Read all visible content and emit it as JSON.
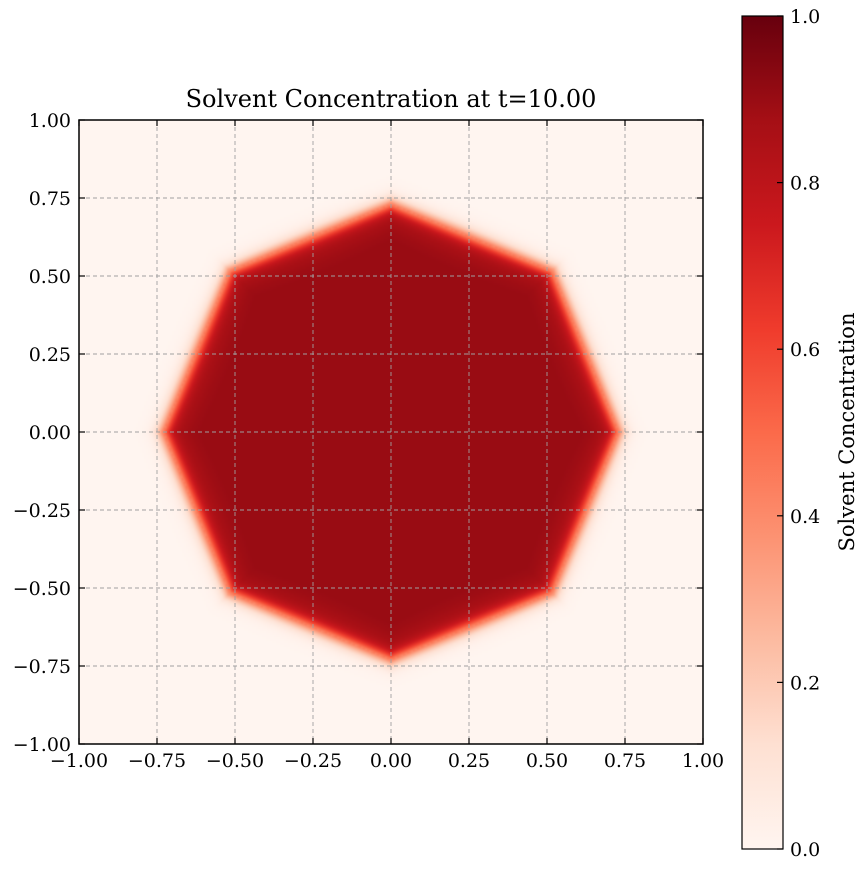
{
  "chart_data": {
    "type": "heatmap",
    "title": "Solvent Concentration at t=10.00",
    "xlabel": "",
    "ylabel": "",
    "xlim": [
      -1.0,
      1.0
    ],
    "ylim": [
      -1.0,
      1.0
    ],
    "x_ticks": [
      -1.0,
      -0.75,
      -0.5,
      -0.25,
      0.0,
      0.25,
      0.5,
      0.75,
      1.0
    ],
    "x_tick_labels": [
      "−1.00",
      "−0.75",
      "−0.50",
      "−0.25",
      "0.00",
      "0.25",
      "0.50",
      "0.75",
      "1.00"
    ],
    "y_ticks": [
      -1.0,
      -0.75,
      -0.5,
      -0.25,
      0.0,
      0.25,
      0.5,
      0.75,
      1.0
    ],
    "y_tick_labels": [
      "−1.00",
      "−0.75",
      "−0.50",
      "−0.25",
      "0.00",
      "0.25",
      "0.50",
      "0.75",
      "1.00"
    ],
    "grid": true,
    "colormap": "Reds",
    "field": {
      "shape": "octagonal droplet",
      "radius": 0.73,
      "inside_value": 0.9,
      "outside_value": 0.0,
      "interface_width": 0.03
    },
    "colorbar": {
      "label": "Solvent Concentration",
      "range": [
        0.0,
        1.0
      ],
      "ticks": [
        0.0,
        0.2,
        0.4,
        0.6,
        0.8,
        1.0
      ],
      "tick_labels": [
        "0.0",
        "0.2",
        "0.4",
        "0.6",
        "0.8",
        "1.0"
      ],
      "colors": [
        "#fff5f0",
        "#fee0d2",
        "#fcbba1",
        "#fc9272",
        "#fb6a4a",
        "#ef3b2c",
        "#cb181d",
        "#a50f15",
        "#67000d"
      ]
    }
  }
}
